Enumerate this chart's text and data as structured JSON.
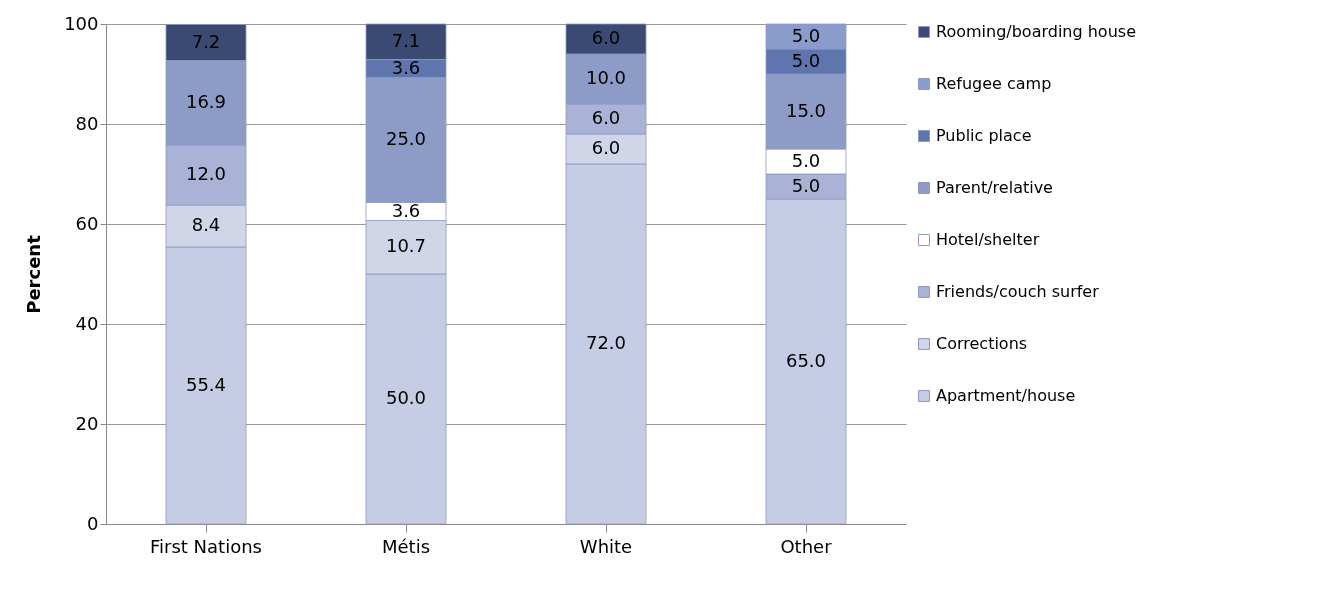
{
  "chart_data": {
    "type": "bar",
    "stacked": true,
    "ylabel": "Percent",
    "categories": [
      "First Nations",
      "Métis",
      "White",
      "Other"
    ],
    "ylim": [
      0,
      100
    ],
    "yticks": [
      0,
      20,
      40,
      60,
      80,
      100
    ],
    "grid": "y",
    "legend": "right",
    "series": [
      {
        "name": "Apartment/house",
        "color": "#c5cce4",
        "values": [
          55.4,
          50.0,
          72.0,
          65.0
        ],
        "value_labels": [
          "55.4",
          "50.0",
          "72.0",
          "65.0"
        ]
      },
      {
        "name": "Corrections",
        "color": "#d0d5e8",
        "values": [
          8.4,
          10.7,
          6.0,
          null
        ],
        "value_labels": [
          "8.4",
          "10.7",
          "6.0",
          null
        ]
      },
      {
        "name": "Friends/couch surfer",
        "color": "#aab3d6",
        "values": [
          12.0,
          null,
          6.0,
          5.0
        ],
        "value_labels": [
          "12.0",
          null,
          "6.0",
          "5.0"
        ]
      },
      {
        "name": "Hotel/shelter",
        "color": "#ffffff",
        "values": [
          null,
          3.6,
          null,
          5.0
        ],
        "value_labels": [
          null,
          "3.6",
          null,
          "5.0"
        ]
      },
      {
        "name": "Parent/relative",
        "color": "#8d9bc7",
        "values": [
          16.9,
          25.0,
          10.0,
          15.0
        ],
        "value_labels": [
          "16.9",
          "25.0",
          "10.0",
          "15.0"
        ]
      },
      {
        "name": "Public place",
        "color": "#5f75ae",
        "values": [
          null,
          3.6,
          null,
          5.0
        ],
        "value_labels": [
          null,
          "3.6",
          null,
          "5.0"
        ]
      },
      {
        "name": "Refugee camp",
        "color": "#8a9ccc",
        "values": [
          null,
          null,
          null,
          5.0
        ],
        "value_labels": [
          null,
          null,
          null,
          "5.0"
        ]
      },
      {
        "name": "Rooming/boarding house",
        "color": "#3b4a72",
        "values": [
          7.2,
          7.1,
          6.0,
          null
        ],
        "value_labels": [
          "7.2",
          "7.1",
          "6.0",
          null
        ]
      }
    ]
  }
}
